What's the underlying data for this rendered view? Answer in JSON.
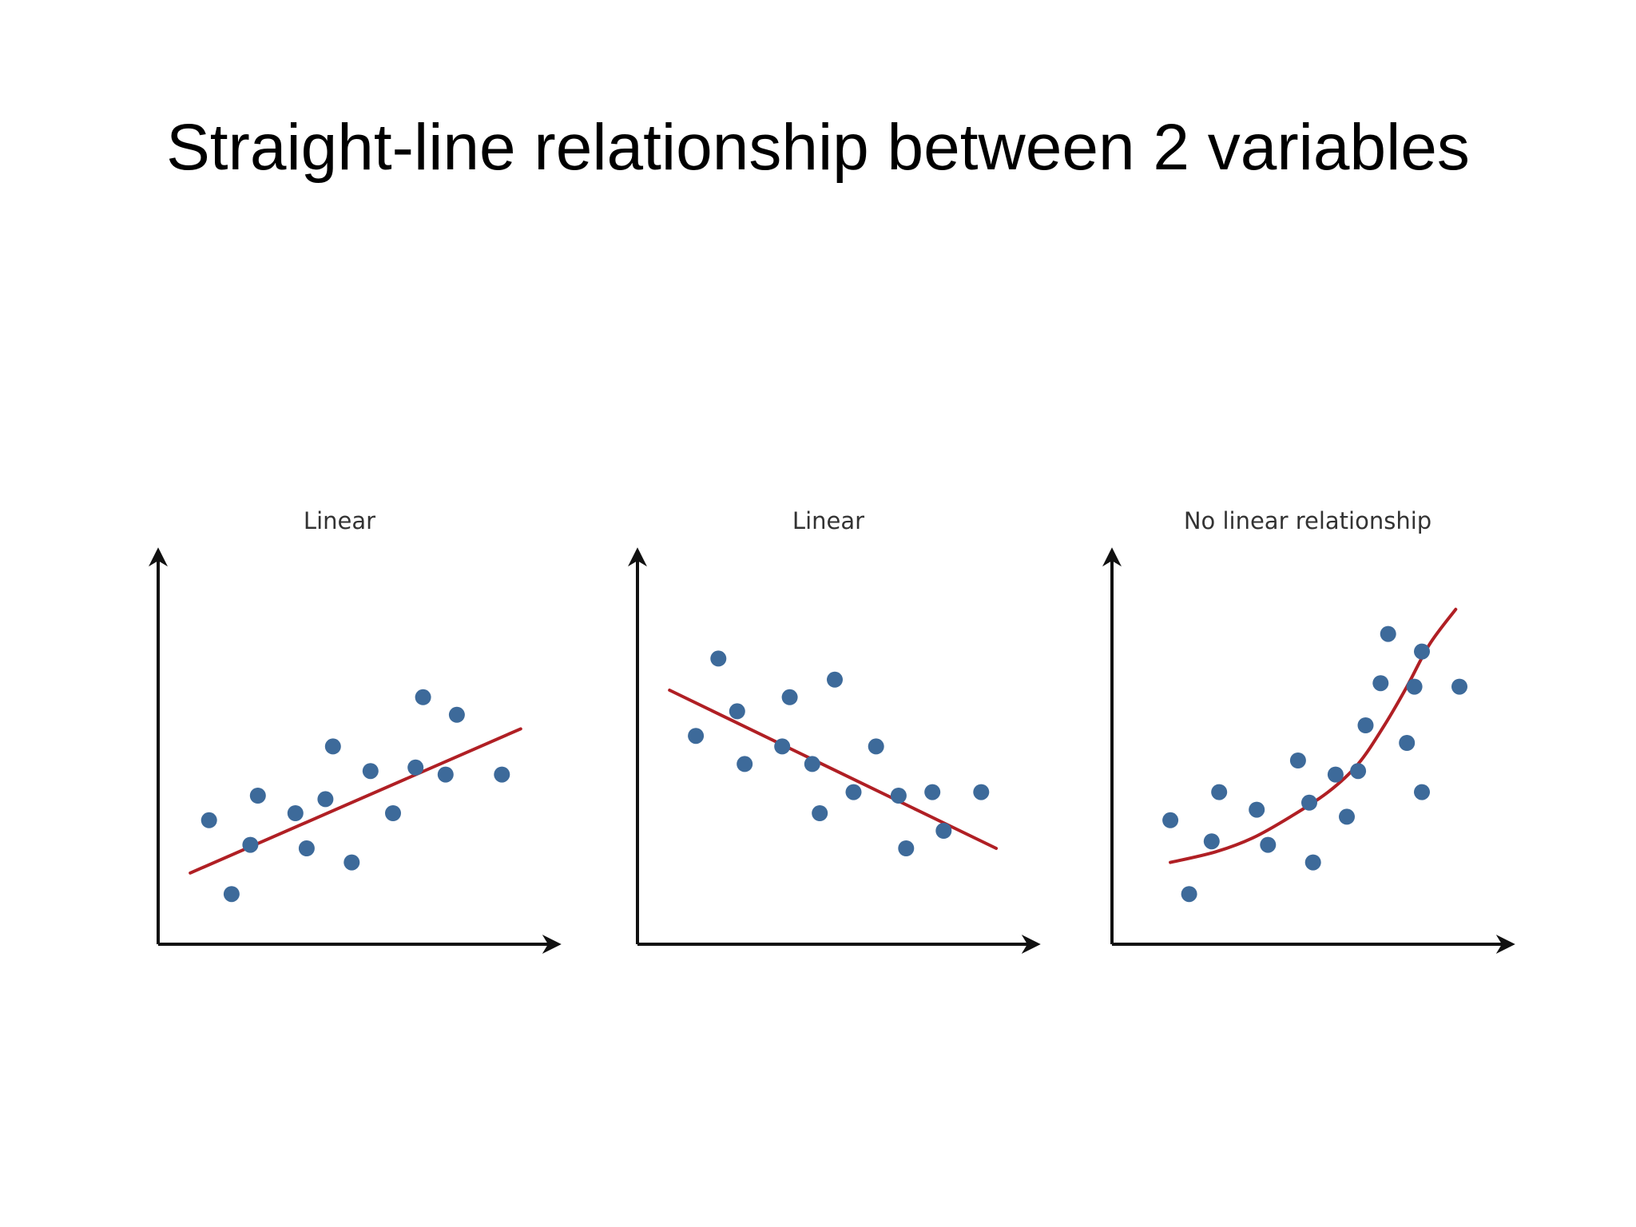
{
  "slide": {
    "title": "Straight-line relationship between 2 variables"
  },
  "colors": {
    "point": "#3d6a9a",
    "fit_line": "#b01f24",
    "axis": "#111111"
  },
  "chart_data": [
    {
      "type": "scatter",
      "title": "Linear",
      "xlabel": "",
      "ylabel": "",
      "xlim": [
        0,
        10
      ],
      "ylim": [
        0,
        10
      ],
      "ticks": false,
      "grid": false,
      "points": [
        {
          "x": 1.1,
          "y": 3.3
        },
        {
          "x": 1.7,
          "y": 1.2
        },
        {
          "x": 2.2,
          "y": 2.6
        },
        {
          "x": 2.4,
          "y": 4.0
        },
        {
          "x": 3.4,
          "y": 3.5
        },
        {
          "x": 3.7,
          "y": 2.5
        },
        {
          "x": 4.2,
          "y": 3.9
        },
        {
          "x": 4.4,
          "y": 5.4
        },
        {
          "x": 4.9,
          "y": 2.1
        },
        {
          "x": 5.4,
          "y": 4.7
        },
        {
          "x": 6.0,
          "y": 3.5
        },
        {
          "x": 6.6,
          "y": 4.8
        },
        {
          "x": 6.8,
          "y": 6.8
        },
        {
          "x": 7.4,
          "y": 4.6
        },
        {
          "x": 7.7,
          "y": 6.3
        },
        {
          "x": 8.9,
          "y": 4.6
        }
      ],
      "fit": {
        "kind": "line",
        "x": [
          0.6,
          9.4
        ],
        "y": [
          1.8,
          5.9
        ]
      }
    },
    {
      "type": "scatter",
      "title": "Linear",
      "xlabel": "",
      "ylabel": "",
      "xlim": [
        0,
        10
      ],
      "ylim": [
        0,
        10
      ],
      "ticks": false,
      "grid": false,
      "points": [
        {
          "x": 1.3,
          "y": 5.7
        },
        {
          "x": 1.9,
          "y": 7.9
        },
        {
          "x": 2.4,
          "y": 6.4
        },
        {
          "x": 2.6,
          "y": 4.9
        },
        {
          "x": 3.6,
          "y": 5.4
        },
        {
          "x": 3.8,
          "y": 6.8
        },
        {
          "x": 4.4,
          "y": 4.9
        },
        {
          "x": 4.6,
          "y": 3.5
        },
        {
          "x": 5.0,
          "y": 7.3
        },
        {
          "x": 5.5,
          "y": 4.1
        },
        {
          "x": 6.1,
          "y": 5.4
        },
        {
          "x": 6.7,
          "y": 4.0
        },
        {
          "x": 6.9,
          "y": 2.5
        },
        {
          "x": 7.6,
          "y": 4.1
        },
        {
          "x": 7.9,
          "y": 3.0
        },
        {
          "x": 8.9,
          "y": 4.1
        }
      ],
      "fit": {
        "kind": "line",
        "x": [
          0.6,
          9.3
        ],
        "y": [
          7.0,
          2.5
        ]
      }
    },
    {
      "type": "scatter",
      "title": "No linear relationship",
      "xlabel": "",
      "ylabel": "",
      "xlim": [
        0,
        10
      ],
      "ylim": [
        0,
        10
      ],
      "ticks": false,
      "grid": false,
      "points": [
        {
          "x": 1.3,
          "y": 3.3
        },
        {
          "x": 1.8,
          "y": 1.2
        },
        {
          "x": 2.4,
          "y": 2.7
        },
        {
          "x": 2.6,
          "y": 4.1
        },
        {
          "x": 3.6,
          "y": 3.6
        },
        {
          "x": 3.9,
          "y": 2.6
        },
        {
          "x": 4.7,
          "y": 5.0
        },
        {
          "x": 5.0,
          "y": 3.8
        },
        {
          "x": 5.1,
          "y": 2.1
        },
        {
          "x": 5.7,
          "y": 4.6
        },
        {
          "x": 6.0,
          "y": 3.4
        },
        {
          "x": 6.3,
          "y": 4.7
        },
        {
          "x": 6.5,
          "y": 6.0
        },
        {
          "x": 6.9,
          "y": 7.2
        },
        {
          "x": 7.1,
          "y": 8.6
        },
        {
          "x": 7.6,
          "y": 5.5
        },
        {
          "x": 7.8,
          "y": 7.1
        },
        {
          "x": 8.0,
          "y": 4.1
        },
        {
          "x": 8.0,
          "y": 8.1
        },
        {
          "x": 9.0,
          "y": 7.1
        }
      ],
      "fit": {
        "kind": "curve",
        "x": [
          1.3,
          2.5,
          3.5,
          4.5,
          5.5,
          6.3,
          7.0,
          7.6,
          8.2,
          8.9
        ],
        "y": [
          2.1,
          2.4,
          2.8,
          3.4,
          4.1,
          4.9,
          6.0,
          7.1,
          8.3,
          9.3
        ]
      }
    }
  ]
}
